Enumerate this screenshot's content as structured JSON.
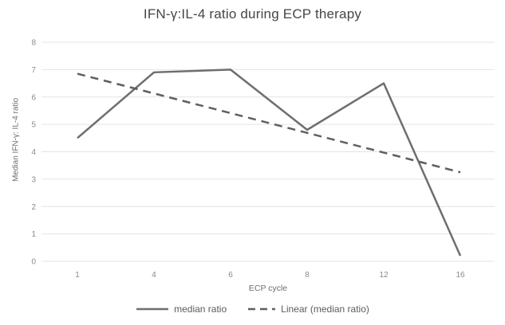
{
  "chart": {
    "title": "IFN-γ:IL-4 ratio during ECP therapy",
    "x_axis_title": "ECP cycle",
    "y_axis_title": "Median IFN-γ: IL-4 ratio",
    "legend": {
      "series1_label": "median ratio",
      "series2_label": "Linear (median ratio)"
    }
  },
  "chart_data": {
    "type": "line",
    "title": "IFN-γ:IL-4 ratio during ECP therapy",
    "xlabel": "ECP cycle",
    "ylabel": "Median IFN-γ: IL-4 ratio",
    "categories": [
      "1",
      "4",
      "6",
      "8",
      "12",
      "16"
    ],
    "series": [
      {
        "name": "median ratio",
        "style": "solid",
        "values": [
          4.5,
          6.9,
          7.0,
          4.8,
          6.5,
          0.2
        ]
      },
      {
        "name": "Linear (median ratio)",
        "style": "dashed",
        "values": [
          6.85,
          6.13,
          5.41,
          4.69,
          3.97,
          3.25
        ]
      }
    ],
    "y_ticks": [
      0,
      1,
      2,
      3,
      4,
      5,
      6,
      7,
      8
    ],
    "ylim": [
      0,
      8
    ],
    "grid": "horizontal",
    "legend_position": "bottom",
    "colors": {
      "line": "#6e6e6e",
      "trendline": "#5f5f5f",
      "gridline": "#e4e4e4",
      "tick_label": "#8a8a8a",
      "title": "#454545",
      "axis_title": "#6d6d6d",
      "background": "#ffffff"
    }
  }
}
